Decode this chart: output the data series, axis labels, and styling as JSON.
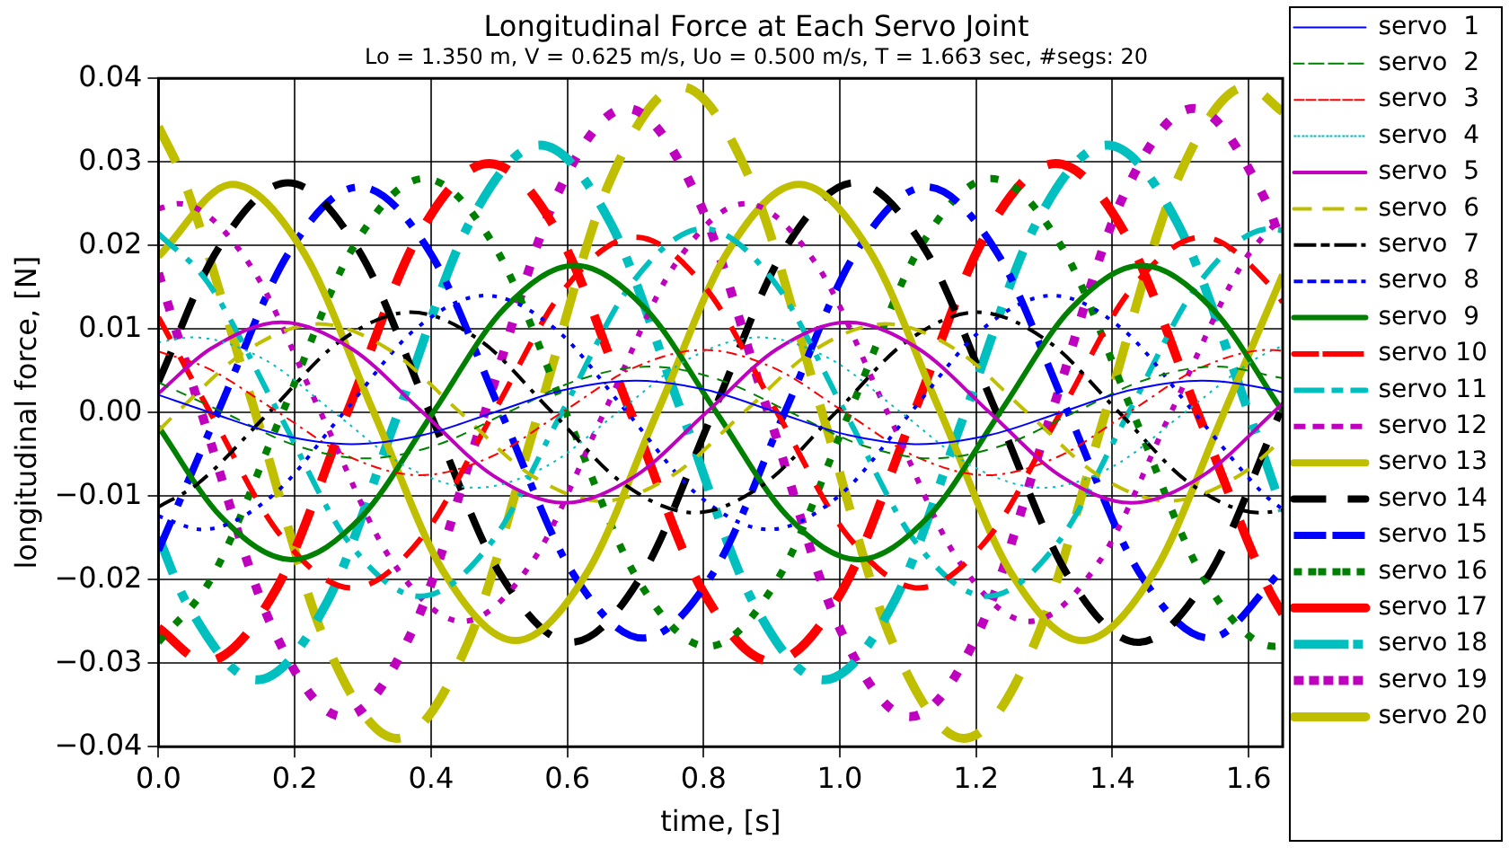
{
  "chart_data": {
    "type": "line",
    "title": "Longitudinal Force at Each Servo Joint",
    "subtitle": "Lo = 1.350 m, V = 0.625 m/s, Uo = 0.500 m/s, T = 1.663 sec, #segs: 20",
    "xlabel": "time, [s]",
    "ylabel": "longitudinal force, [N]",
    "xlim": [
      0,
      1.65
    ],
    "xticks": [
      {
        "value": 0,
        "label": "0.0"
      },
      {
        "value": 0.2,
        "label": "0.2"
      },
      {
        "value": 0.4,
        "label": "0.4"
      },
      {
        "value": 0.6,
        "label": "0.6"
      },
      {
        "value": 0.8,
        "label": "0.8"
      },
      {
        "value": 1.0,
        "label": "1.0"
      },
      {
        "value": 1.2,
        "label": "1.2"
      },
      {
        "value": 1.4,
        "label": "1.4"
      },
      {
        "value": 1.6,
        "label": "1.6"
      }
    ],
    "ylim": [
      -0.04,
      0.04
    ],
    "yticks": [
      {
        "value": -0.04,
        "label": "−0.04"
      },
      {
        "value": -0.03,
        "label": "−0.03"
      },
      {
        "value": -0.02,
        "label": "−0.02"
      },
      {
        "value": -0.01,
        "label": "−0.01"
      },
      {
        "value": 0,
        "label": "0.00"
      },
      {
        "value": 0.01,
        "label": "0.01"
      },
      {
        "value": 0.02,
        "label": "0.02"
      },
      {
        "value": 0.03,
        "label": "0.03"
      },
      {
        "value": 0.04,
        "label": "0.04"
      }
    ],
    "grid": true,
    "legend": "right",
    "series": [
      {
        "name": "servo  1",
        "color": "#0000ff",
        "line_style": "solid",
        "x": [
          0,
          0.076,
          0.18,
          0.284,
          0.388,
          0.492,
          0.596,
          0.7,
          0.804,
          0.908,
          1.012,
          1.116,
          1.22,
          1.324,
          1.428,
          1.532,
          1.636,
          1.65
        ],
        "values": [
          0.0021,
          0,
          -0.0027,
          -0.0038,
          -0.0027,
          0,
          0.0027,
          0.0038,
          0.0027,
          0,
          -0.0027,
          -0.0038,
          -0.0027,
          0,
          0.0027,
          0.0038,
          0.0027,
          0.0024
        ]
      },
      {
        "name": "servo  2",
        "color": "#008000",
        "line_style": "dashed",
        "x": [
          0,
          0.096,
          0.2,
          0.304,
          0.408,
          0.512,
          0.616,
          0.72,
          0.824,
          0.928,
          1.032,
          1.136,
          1.24,
          1.344,
          1.448,
          1.552,
          1.65
        ],
        "values": [
          0.0036,
          0,
          -0.0039,
          -0.0055,
          -0.0039,
          0,
          0.0039,
          0.0055,
          0.0039,
          0,
          -0.0039,
          -0.0055,
          -0.0039,
          0,
          0.0039,
          0.0055,
          0.0041
        ]
      },
      {
        "name": "servo  3",
        "color": "#ff0000",
        "line_style": "dashdot",
        "x": [
          0,
          0.072,
          0.176,
          0.28,
          0.384,
          0.488,
          0.592,
          0.696,
          0.8,
          0.904,
          1.008,
          1.112,
          1.216,
          1.32,
          1.424,
          1.528,
          1.632,
          1.65
        ],
        "values": [
          0.0073,
          0.0053,
          0,
          -0.0053,
          -0.0075,
          -0.0053,
          0,
          0.0053,
          0.0075,
          0.0053,
          0,
          -0.0053,
          -0.0075,
          -0.0053,
          0,
          0.0053,
          0.0075,
          0.0074
        ]
      },
      {
        "name": "servo  4",
        "color": "#00bfbf",
        "line_style": "dotted",
        "x": [
          0,
          0.05,
          0.154,
          0.258,
          0.362,
          0.466,
          0.57,
          0.674,
          0.778,
          0.882,
          0.986,
          1.09,
          1.194,
          1.298,
          1.402,
          1.506,
          1.61,
          1.65
        ],
        "values": [
          0.0084,
          0.009,
          0.0064,
          0,
          -0.0064,
          -0.009,
          -0.0064,
          0,
          0.0064,
          0.009,
          0.0064,
          0,
          -0.0064,
          -0.009,
          -0.0064,
          0,
          0.0064,
          0.008
        ]
      },
      {
        "name": "servo  5",
        "color": "#bf00bf",
        "line_style": "solid",
        "x": [
          0,
          0.076,
          0.18,
          0.284,
          0.388,
          0.492,
          0.596,
          0.7,
          0.804,
          0.908,
          1.012,
          1.116,
          1.22,
          1.324,
          1.428,
          1.532,
          1.636,
          1.65
        ],
        "values": [
          0.0023,
          0.0076,
          0.0108,
          0.0076,
          0,
          -0.0076,
          -0.0108,
          -0.0076,
          0,
          0.0076,
          0.0108,
          0.0076,
          0,
          -0.0076,
          -0.0108,
          -0.0076,
          0,
          0.0011
        ]
      },
      {
        "name": "servo  6",
        "color": "#bfbf00",
        "line_style": "dashed",
        "x": [
          0,
          0.027,
          0.131,
          0.235,
          0.339,
          0.443,
          0.547,
          0.651,
          0.755,
          0.859,
          0.963,
          1.067,
          1.171,
          1.275,
          1.379,
          1.483,
          1.587,
          1.65
        ],
        "values": [
          -0.0022,
          0,
          0.0075,
          0.0106,
          0.0075,
          0,
          -0.0075,
          -0.0106,
          -0.0075,
          0,
          0.0075,
          0.0106,
          0.0075,
          0,
          -0.0075,
          -0.0106,
          -0.0075,
          -0.0032
        ]
      },
      {
        "name": "servo  7",
        "color": "#000000",
        "line_style": "dashdot",
        "x": [
          0,
          0.058,
          0.162,
          0.266,
          0.37,
          0.474,
          0.578,
          0.682,
          0.786,
          0.89,
          0.994,
          1.098,
          1.202,
          1.306,
          1.41,
          1.514,
          1.618,
          1.65
        ],
        "values": [
          -0.0113,
          -0.0085,
          0,
          0.0085,
          0.012,
          0.0085,
          0,
          -0.0085,
          -0.012,
          -0.0085,
          0,
          0.0085,
          0.012,
          0.0085,
          0,
          -0.0085,
          -0.012,
          -0.0117
        ]
      },
      {
        "name": "servo  8",
        "color": "#0000ff",
        "line_style": "dotted",
        "x": [
          0,
          0.064,
          0.168,
          0.272,
          0.376,
          0.48,
          0.584,
          0.688,
          0.792,
          0.896,
          1.0,
          1.104,
          1.208,
          1.312,
          1.416,
          1.52,
          1.624,
          1.65
        ],
        "values": [
          -0.0124,
          -0.014,
          -0.0099,
          0,
          0.0099,
          0.014,
          0.0099,
          0,
          -0.0099,
          -0.014,
          -0.0099,
          0,
          0.0099,
          0.014,
          0.0099,
          0,
          -0.0099,
          -0.0116
        ]
      },
      {
        "name": "servo  9",
        "color": "#008000",
        "line_style": "solid",
        "x": [
          0,
          0.091,
          0.195,
          0.299,
          0.403,
          0.507,
          0.611,
          0.715,
          0.819,
          0.923,
          1.027,
          1.131,
          1.235,
          1.339,
          1.443,
          1.547,
          1.65
        ],
        "values": [
          -0.0017,
          -0.0124,
          -0.0176,
          -0.0124,
          0,
          0.0124,
          0.0176,
          0.0124,
          0,
          -0.0124,
          -0.0176,
          -0.0124,
          0,
          0.0124,
          0.0176,
          0.0124,
          0.0001
        ]
      },
      {
        "name": "servo 10",
        "color": "#ff0000",
        "line_style": "dashed",
        "x": [
          0,
          0.076,
          0.18,
          0.284,
          0.388,
          0.492,
          0.596,
          0.7,
          0.804,
          0.908,
          1.012,
          1.116,
          1.22,
          1.324,
          1.428,
          1.532,
          1.636,
          1.65
        ],
        "values": [
          0.0114,
          0,
          -0.0148,
          -0.021,
          -0.0148,
          0,
          0.0148,
          0.021,
          0.0148,
          0,
          -0.0148,
          -0.021,
          -0.0148,
          0,
          0.0148,
          0.021,
          0.0148,
          0.0132
        ]
      },
      {
        "name": "servo 11",
        "color": "#00bfbf",
        "line_style": "dashdot",
        "x": [
          0,
          0.072,
          0.176,
          0.28,
          0.384,
          0.488,
          0.592,
          0.696,
          0.8,
          0.904,
          1.008,
          1.112,
          1.216,
          1.32,
          1.424,
          1.528,
          1.632,
          1.65
        ],
        "values": [
          0.0214,
          0.0156,
          0,
          -0.0156,
          -0.022,
          -0.0156,
          0,
          0.0156,
          0.022,
          0.0156,
          0,
          -0.0156,
          -0.022,
          -0.0156,
          0,
          0.0156,
          0.022,
          0.0218
        ]
      },
      {
        "name": "servo 12",
        "color": "#bf00bf",
        "line_style": "dotted",
        "x": [
          0,
          0.03,
          0.134,
          0.238,
          0.342,
          0.446,
          0.55,
          0.654,
          0.758,
          0.862,
          0.966,
          1.07,
          1.174,
          1.278,
          1.382,
          1.486,
          1.59,
          1.65
        ],
        "values": [
          0.0244,
          0.025,
          0.0177,
          0,
          -0.0177,
          -0.025,
          -0.0177,
          0,
          0.0177,
          0.025,
          0.0177,
          0,
          -0.0177,
          -0.025,
          -0.0177,
          0,
          0.0177,
          0.0236
        ]
      },
      {
        "name": "servo 13",
        "color": "#bfbf00",
        "line_style": "solid",
        "x": [
          0,
          0.108,
          0.212,
          0.316,
          0.42,
          0.524,
          0.628,
          0.732,
          0.836,
          0.94,
          1.044,
          1.148,
          1.252,
          1.356,
          1.46,
          1.564,
          1.65
        ],
        "values": [
          0.0187,
          0.0273,
          0.0193,
          0,
          -0.0193,
          -0.0273,
          -0.0193,
          0,
          0.0193,
          0.0273,
          0.0193,
          0,
          -0.0193,
          -0.0273,
          -0.0193,
          0,
          0.0165
        ]
      },
      {
        "name": "servo 14",
        "color": "#000000",
        "line_style": "dashed",
        "x": [
          0,
          0.086,
          0.19,
          0.294,
          0.398,
          0.502,
          0.606,
          0.71,
          0.814,
          0.918,
          1.022,
          1.126,
          1.23,
          1.334,
          1.438,
          1.542,
          1.646
        ],
        "values": [
          0.0037,
          0.0194,
          0.0275,
          0.0194,
          0,
          -0.0194,
          -0.0275,
          -0.0194,
          0,
          0.0194,
          0.0275,
          0.0194,
          0,
          -0.0194,
          -0.0275,
          -0.0194,
          0
        ]
      },
      {
        "name": "servo 15",
        "color": "#0000ff",
        "line_style": "dashdot",
        "x": [
          0,
          0.087,
          0.191,
          0.295,
          0.399,
          0.503,
          0.607,
          0.711,
          0.815,
          0.919,
          1.023,
          1.127,
          1.231,
          1.335,
          1.439,
          1.543,
          1.647
        ],
        "values": [
          -0.0165,
          0,
          0.0191,
          0.027,
          0.0191,
          0,
          -0.0191,
          -0.027,
          -0.0191,
          0,
          0.0191,
          0.027,
          0.0191,
          0,
          -0.0191,
          -0.027,
          -0.0191
        ]
      },
      {
        "name": "servo 16",
        "color": "#008000",
        "line_style": "dotted",
        "x": [
          0,
          0.078,
          0.182,
          0.286,
          0.39,
          0.494,
          0.598,
          0.702,
          0.806,
          0.91,
          1.014,
          1.118,
          1.222,
          1.326,
          1.43,
          1.534,
          1.638,
          1.65
        ],
        "values": [
          -0.0275,
          -0.0198,
          0,
          0.0198,
          0.028,
          0.0198,
          0,
          -0.0198,
          -0.028,
          -0.0198,
          0,
          0.0198,
          0.028,
          0.0198,
          0,
          -0.0198,
          -0.028,
          -0.0279
        ]
      },
      {
        "name": "servo 17",
        "color": "#ff0000",
        "line_style": "dashed",
        "x": [
          0,
          0.069,
          0.173,
          0.277,
          0.381,
          0.485,
          0.589,
          0.693,
          0.797,
          0.901,
          1.005,
          1.109,
          1.213,
          1.317,
          1.421,
          1.525,
          1.629,
          1.65
        ],
        "values": [
          -0.0258,
          -0.0298,
          -0.0211,
          0,
          0.0211,
          0.0298,
          0.0211,
          0,
          -0.0211,
          -0.0298,
          -0.0211,
          0,
          0.0211,
          0.0298,
          0.0211,
          0,
          -0.0211,
          -0.0241
        ]
      },
      {
        "name": "servo 18",
        "color": "#00bfbf",
        "line_style": "dashdot",
        "x": [
          0,
          0.04,
          0.144,
          0.248,
          0.352,
          0.456,
          0.56,
          0.664,
          0.768,
          0.872,
          0.976,
          1.08,
          1.184,
          1.288,
          1.392,
          1.496,
          1.6,
          1.65
        ],
        "values": [
          -0.0149,
          -0.0226,
          -0.032,
          -0.0226,
          0,
          0.0226,
          0.032,
          0.0226,
          0,
          -0.0226,
          -0.032,
          -0.0226,
          0,
          0.0226,
          0.032,
          0.0226,
          0,
          -0.0118
        ]
      },
      {
        "name": "servo 19",
        "color": "#bf00bf",
        "line_style": "dotted",
        "x": [
          0,
          0.063,
          0.167,
          0.271,
          0.375,
          0.479,
          0.583,
          0.687,
          0.791,
          0.895,
          0.999,
          1.103,
          1.207,
          1.311,
          1.415,
          1.519,
          1.623,
          1.65
        ],
        "values": [
          0.0167,
          0,
          -0.0257,
          -0.0364,
          -0.0257,
          0,
          0.0257,
          0.0364,
          0.0257,
          0,
          -0.0257,
          -0.0364,
          -0.0257,
          0,
          0.0257,
          0.0364,
          0.0257,
          0.02
        ]
      },
      {
        "name": "servo 20",
        "color": "#bfbf00",
        "line_style": "dashed",
        "x": [
          0,
          0.038,
          0.142,
          0.246,
          0.35,
          0.454,
          0.558,
          0.662,
          0.766,
          0.87,
          0.974,
          1.078,
          1.182,
          1.286,
          1.39,
          1.494,
          1.598,
          1.65
        ],
        "values": [
          0.0342,
          0.0276,
          0,
          -0.0276,
          -0.039,
          -0.0276,
          0,
          0.0276,
          0.039,
          0.0276,
          0,
          -0.0276,
          -0.039,
          -0.0276,
          0,
          0.0276,
          0.039,
          0.036
        ]
      }
    ]
  }
}
